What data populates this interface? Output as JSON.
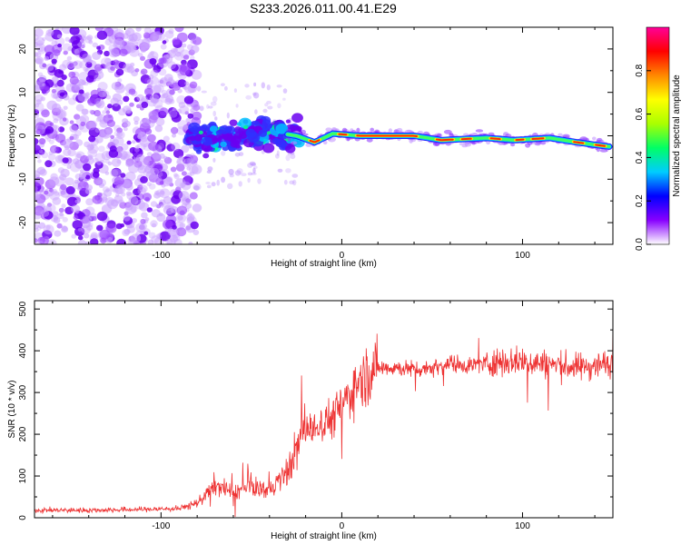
{
  "figure": {
    "title": "S233.2026.011.00.41.E29"
  },
  "chart_data": [
    {
      "type": "heatmap",
      "title": "S233.2026.011.00.41.E29",
      "xlabel": "Height of straight line (km)",
      "ylabel": "Frequency (Hz)",
      "xlim": [
        -170,
        150
      ],
      "ylim": [
        -25,
        25
      ],
      "xticks": [
        -100,
        0,
        100
      ],
      "yticks": [
        -20,
        -10,
        0,
        10,
        20
      ],
      "colorbar": {
        "label": "Normalized spectral amplitude",
        "range": [
          0,
          1
        ],
        "ticks": [
          "0.0",
          "0.2",
          "0.4",
          "0.6",
          "0.8"
        ],
        "colors": [
          "#ffffff",
          "#8800ff",
          "#0000ff",
          "#00ccff",
          "#00ff66",
          "#aaff00",
          "#ffff00",
          "#ff8800",
          "#ff0000",
          "#ff0099"
        ]
      },
      "ridge": {
        "description": "narrowband tone near 0 Hz",
        "start_km": -85,
        "points": [
          [
            -85,
            -1
          ],
          [
            -60,
            0
          ],
          [
            -40,
            1
          ],
          [
            -25,
            0
          ],
          [
            -15,
            -1.5
          ],
          [
            -5,
            0.5
          ],
          [
            10,
            0
          ],
          [
            40,
            0
          ],
          [
            55,
            -1
          ],
          [
            80,
            -0.5
          ],
          [
            95,
            -1
          ],
          [
            115,
            -0.5
          ],
          [
            130,
            -1.5
          ],
          [
            148,
            -2.5
          ]
        ]
      }
    },
    {
      "type": "line",
      "xlabel": "Height of straight line (km)",
      "ylabel": "SNR (10 * v/v)",
      "xlim": [
        -170,
        150
      ],
      "ylim": [
        0,
        520
      ],
      "xticks": [
        -100,
        0,
        100
      ],
      "yticks": [
        0,
        100,
        200,
        300,
        400,
        500
      ],
      "series": [
        {
          "name": "SNR",
          "color": "#ee3333",
          "x": [
            -170,
            -140,
            -110,
            -90,
            -80,
            -70,
            -60,
            -50,
            -40,
            -30,
            -20,
            -15,
            -10,
            -5,
            0,
            10,
            20,
            30,
            40,
            50,
            60,
            70,
            80,
            90,
            100,
            110,
            120,
            130,
            140,
            150
          ],
          "y": [
            18,
            18,
            20,
            22,
            35,
            80,
            60,
            75,
            65,
            110,
            220,
            210,
            230,
            240,
            270,
            330,
            360,
            360,
            355,
            360,
            370,
            365,
            370,
            375,
            375,
            370,
            365,
            360,
            365,
            370
          ]
        }
      ]
    }
  ]
}
